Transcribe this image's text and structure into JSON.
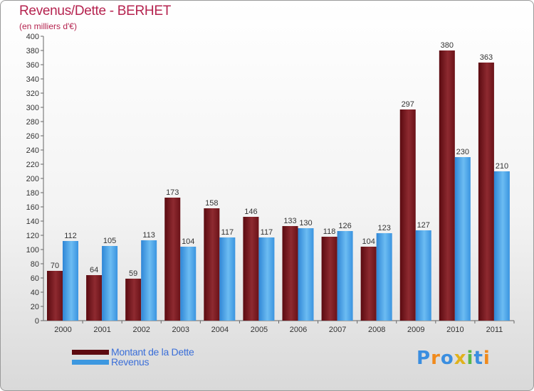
{
  "header": {
    "title": "Revenus/Dette - BERHET",
    "subtitle": "(en milliers d'€)"
  },
  "chart_data": {
    "type": "bar",
    "title": "Revenus/Dette - BERHET",
    "subtitle": "(en milliers d'€)",
    "categories": [
      "2000",
      "2001",
      "2002",
      "2003",
      "2004",
      "2005",
      "2006",
      "2007",
      "2008",
      "2009",
      "2010",
      "2011"
    ],
    "series": [
      {
        "name": "Montant de la Dette",
        "color": "#7a1a1f",
        "values": [
          70,
          64,
          59,
          173,
          158,
          146,
          133,
          118,
          104,
          297,
          380,
          363
        ]
      },
      {
        "name": "Revenus",
        "color": "#4aa3e6",
        "values": [
          112,
          105,
          113,
          104,
          117,
          117,
          130,
          126,
          123,
          127,
          230,
          210
        ]
      }
    ],
    "ylim": [
      0,
      400
    ],
    "ytick_step": 20,
    "grid": false,
    "legend_position": "bottom-left"
  },
  "legend": {
    "items": [
      {
        "label": "Montant de la Dette",
        "color": "#5c0a10"
      },
      {
        "label": "Revenus",
        "color": "#3d98e0"
      }
    ]
  },
  "logo": {
    "text": "Proxiti",
    "letters": [
      "P",
      "r",
      "o",
      "x",
      "i",
      "t",
      "i"
    ],
    "colors": [
      "#3a8ee0",
      "#f08a1c",
      "#3a8ee0",
      "#e0b21c",
      "#58b848",
      "#3a8ee0",
      "#f08a1c"
    ]
  }
}
